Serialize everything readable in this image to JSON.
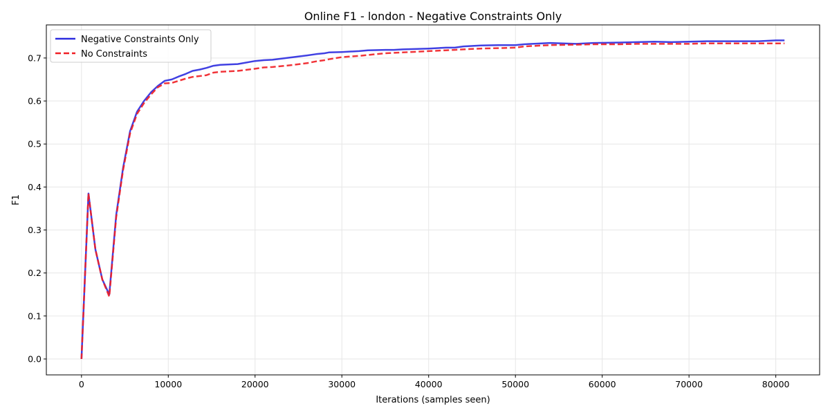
{
  "chart_data": {
    "type": "line",
    "title": "Online F1 - london - Negative Constraints Only",
    "xlabel": "Iterations (samples seen)",
    "ylabel": "F1",
    "xlim": [
      -4050,
      85050
    ],
    "ylim": [
      -0.037,
      0.777
    ],
    "xticks": [
      0,
      10000,
      20000,
      30000,
      40000,
      50000,
      60000,
      70000,
      80000
    ],
    "xtick_labels": [
      "0",
      "10000",
      "20000",
      "30000",
      "40000",
      "50000",
      "60000",
      "70000",
      "80000"
    ],
    "yticks": [
      0.0,
      0.1,
      0.2,
      0.3,
      0.4,
      0.5,
      0.6,
      0.7
    ],
    "ytick_labels": [
      "0.0",
      "0.1",
      "0.2",
      "0.3",
      "0.4",
      "0.5",
      "0.6",
      "0.7"
    ],
    "grid": true,
    "legend_position": "top-left",
    "series": [
      {
        "name": "Negative Constraints Only",
        "color": "#2b2bdf",
        "style": "solid",
        "x": [
          0,
          800,
          1600,
          2400,
          3200,
          4000,
          4800,
          5600,
          6400,
          7200,
          8000,
          8800,
          9600,
          10400,
          11200,
          12000,
          12800,
          13600,
          14400,
          15200,
          16000,
          18000,
          20000,
          21000,
          22000,
          24000,
          26000,
          27000,
          28000,
          28500,
          30000,
          32000,
          33000,
          35000,
          36000,
          37000,
          40000,
          42000,
          43000,
          44000,
          46000,
          48000,
          50000,
          51000,
          54000,
          57000,
          59000,
          62000,
          64000,
          66000,
          68000,
          70000,
          72000,
          75000,
          78000,
          80000,
          81000
        ],
        "y": [
          0.0,
          0.385,
          0.255,
          0.185,
          0.15,
          0.335,
          0.445,
          0.53,
          0.575,
          0.6,
          0.62,
          0.635,
          0.647,
          0.65,
          0.657,
          0.663,
          0.67,
          0.673,
          0.677,
          0.682,
          0.684,
          0.686,
          0.693,
          0.695,
          0.696,
          0.701,
          0.706,
          0.709,
          0.711,
          0.713,
          0.714,
          0.716,
          0.718,
          0.719,
          0.719,
          0.72,
          0.722,
          0.724,
          0.724,
          0.727,
          0.729,
          0.73,
          0.73,
          0.732,
          0.735,
          0.733,
          0.735,
          0.736,
          0.737,
          0.738,
          0.737,
          0.738,
          0.739,
          0.739,
          0.739,
          0.741,
          0.741
        ]
      },
      {
        "name": "No Constraints",
        "color": "#f01e24",
        "style": "dashed",
        "x": [
          0,
          800,
          1600,
          2400,
          3200,
          4000,
          4800,
          5600,
          6400,
          7200,
          8000,
          8800,
          9600,
          10400,
          11200,
          12000,
          12800,
          13600,
          14400,
          15200,
          16000,
          18000,
          20000,
          21000,
          22000,
          24000,
          26000,
          27000,
          28000,
          28500,
          30000,
          32000,
          33000,
          35000,
          36000,
          37000,
          40000,
          42000,
          43000,
          44000,
          46000,
          48000,
          50000,
          51000,
          54000,
          57000,
          59000,
          62000,
          64000,
          66000,
          68000,
          70000,
          72000,
          75000,
          78000,
          80000,
          81000
        ],
        "y": [
          0.0,
          0.385,
          0.255,
          0.185,
          0.145,
          0.33,
          0.44,
          0.525,
          0.57,
          0.595,
          0.615,
          0.632,
          0.641,
          0.642,
          0.647,
          0.652,
          0.656,
          0.658,
          0.66,
          0.666,
          0.668,
          0.67,
          0.675,
          0.678,
          0.679,
          0.683,
          0.688,
          0.692,
          0.695,
          0.697,
          0.702,
          0.705,
          0.707,
          0.711,
          0.712,
          0.713,
          0.716,
          0.718,
          0.719,
          0.72,
          0.722,
          0.723,
          0.724,
          0.727,
          0.73,
          0.731,
          0.732,
          0.732,
          0.733,
          0.733,
          0.733,
          0.733,
          0.734,
          0.734,
          0.734,
          0.734,
          0.734
        ]
      }
    ]
  }
}
